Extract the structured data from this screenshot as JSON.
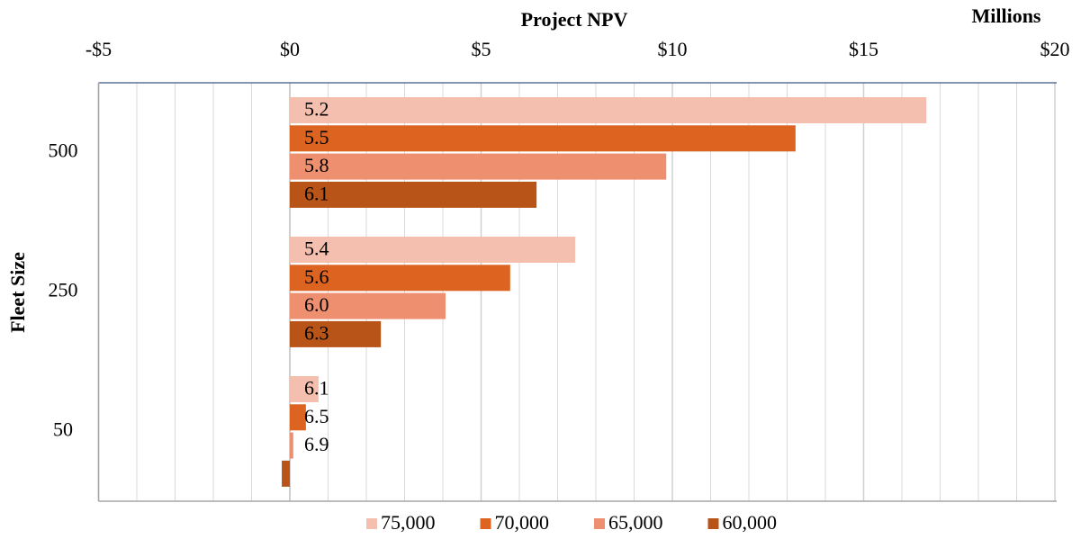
{
  "chart_data": {
    "type": "barh",
    "title": "Project NPV",
    "unit_label": "Millions",
    "y_label": "Fleet Size",
    "categories": [
      "500",
      "250",
      "50"
    ],
    "series": [
      {
        "name": "75,000",
        "color": "#f4bfae",
        "values": [
          16.64,
          7.46,
          0.75
        ],
        "bar_labels": [
          "5.2",
          "5.4",
          "6.1"
        ]
      },
      {
        "name": "70,000",
        "color": "#dc6420",
        "values": [
          13.22,
          5.76,
          0.42
        ],
        "bar_labels": [
          "5.5",
          "5.6",
          "6.5"
        ]
      },
      {
        "name": "65,000",
        "color": "#ee9070",
        "values": [
          9.84,
          4.07,
          0.09
        ],
        "bar_labels": [
          "5.8",
          "6.0",
          "6.9"
        ]
      },
      {
        "name": "60,000",
        "color": "#b85418",
        "values": [
          6.45,
          2.38,
          -0.21
        ],
        "bar_labels": [
          "6.1",
          "6.3",
          null
        ]
      }
    ],
    "xlim": [
      -5,
      20
    ],
    "xticks": [
      {
        "value": -5,
        "label": "-$5"
      },
      {
        "value": 0,
        "label": "$0"
      },
      {
        "value": 5,
        "label": "$5"
      },
      {
        "value": 10,
        "label": "$10"
      },
      {
        "value": 15,
        "label": "$15"
      },
      {
        "value": 20,
        "label": "$20"
      }
    ],
    "grid": true,
    "minor_grid_step": 1,
    "legend": "bottom"
  }
}
